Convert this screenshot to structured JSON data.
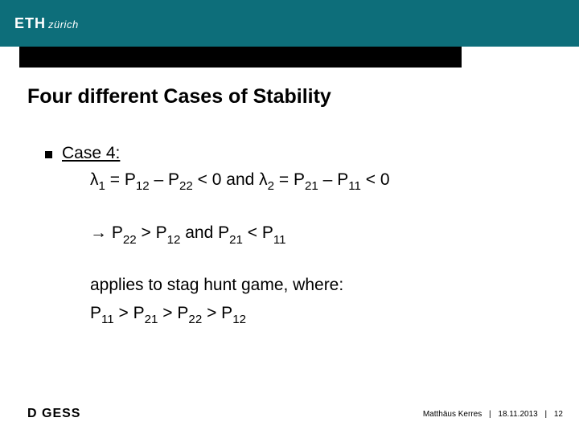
{
  "header": {
    "logo_eth": "ETH",
    "logo_zurich": "zürich"
  },
  "title": "Four different Cases of Stability",
  "case": {
    "label": "Case 4:",
    "line1_html": "λ<sub>1</sub> = P<sub>12</sub> – P<sub>22</sub> < 0 and λ<sub>2</sub> = P<sub>21</sub> – P<sub>11</sub> < 0",
    "line2_html": "→ P<sub>22</sub> > P<sub>12</sub> and P<sub>21</sub> < P<sub>11</sub>",
    "line3": "applies to stag hunt game, where:",
    "line4_html": "P<sub>11</sub> > P<sub>21</sub> > P<sub>22</sub> > P<sub>12</sub>"
  },
  "footer": {
    "dept_d": "D",
    "dept_rest": " GESS",
    "author": "Matthäus Kerres",
    "date": "18.11.2013",
    "page": "12"
  },
  "colors": {
    "header_bg": "#0d6e7a",
    "black": "#000000",
    "white": "#ffffff"
  }
}
